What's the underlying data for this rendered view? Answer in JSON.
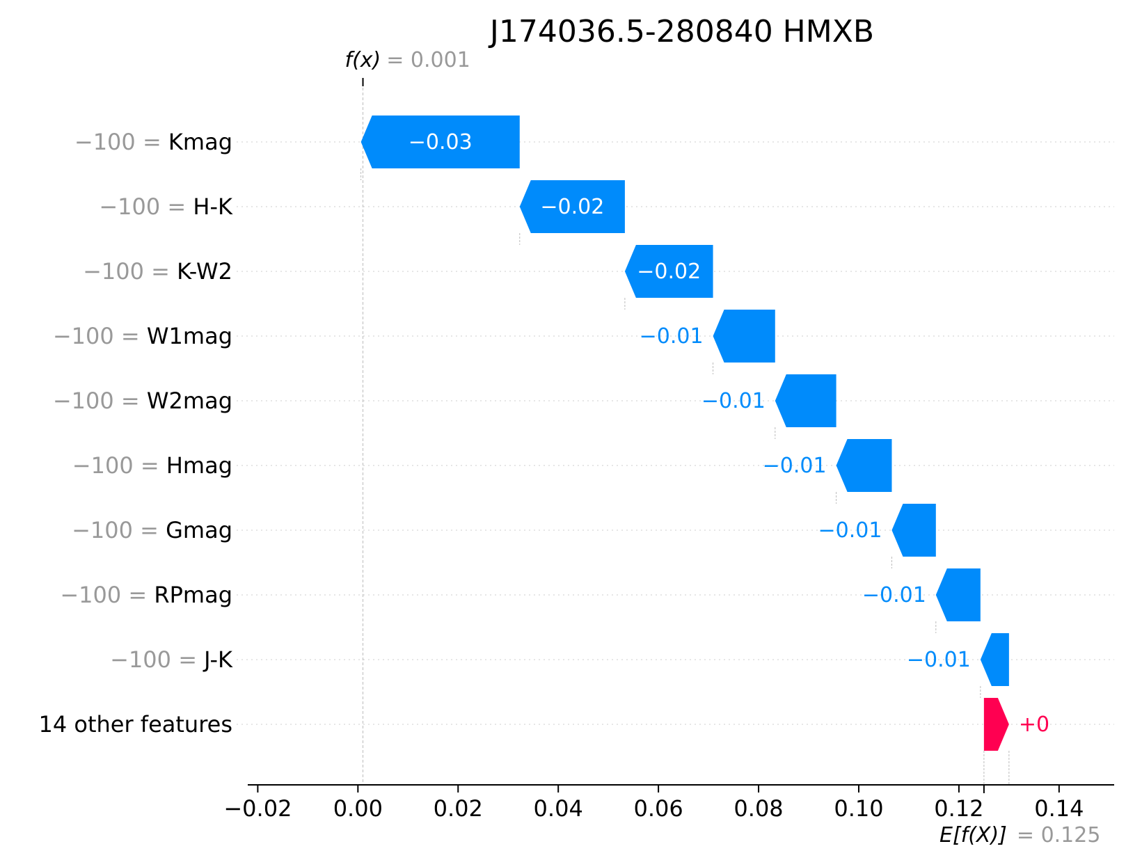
{
  "colors": {
    "negative": "#008bfb",
    "positive": "#ff0051",
    "muted": "#999999",
    "text": "#000000"
  },
  "chart_data": {
    "type": "bar",
    "subtype": "shap-waterfall",
    "title": "J174036.5-280840 HMXB",
    "fx": {
      "label": "f(x)",
      "value_text": "= 0.001",
      "value": 0.001
    },
    "base": {
      "label": "E[f(X)]",
      "value_text": "= 0.125",
      "value": 0.125
    },
    "xlim": [
      -0.022,
      0.151
    ],
    "xticks": [
      -0.02,
      0.0,
      0.02,
      0.04,
      0.06,
      0.08,
      0.1,
      0.12,
      0.14
    ],
    "xtick_labels": [
      "−0.02",
      "0.00",
      "0.02",
      "0.04",
      "0.06",
      "0.08",
      "0.10",
      "0.12",
      "0.14"
    ],
    "grid": "horizontal dotted per feature row",
    "features": [
      {
        "value_text": "−100 = ",
        "name": "Kmag",
        "shap": -0.0317,
        "label": "−0.03",
        "start": 0.0323,
        "end": 0.0006
      },
      {
        "value_text": "−100 = ",
        "name": "H-K",
        "shap": -0.021,
        "label": "−0.02",
        "start": 0.0533,
        "end": 0.0323
      },
      {
        "value_text": "−100 = ",
        "name": "K-W2",
        "shap": -0.0176,
        "label": "−0.02",
        "start": 0.0709,
        "end": 0.0533
      },
      {
        "value_text": "−100 = ",
        "name": "W1mag",
        "shap": -0.0124,
        "label": "−0.01",
        "start": 0.0833,
        "end": 0.0709
      },
      {
        "value_text": "−100 = ",
        "name": "W2mag",
        "shap": -0.0122,
        "label": "−0.01",
        "start": 0.0955,
        "end": 0.0833
      },
      {
        "value_text": "−100 = ",
        "name": "Hmag",
        "shap": -0.0111,
        "label": "−0.01",
        "start": 0.1066,
        "end": 0.0955
      },
      {
        "value_text": "−100 = ",
        "name": "Gmag",
        "shap": -0.0088,
        "label": "−0.01",
        "start": 0.1154,
        "end": 0.1066
      },
      {
        "value_text": "−100 = ",
        "name": "RPmag",
        "shap": -0.0089,
        "label": "−0.01",
        "start": 0.1243,
        "end": 0.1154
      },
      {
        "value_text": "−100 = ",
        "name": "J-K",
        "shap": -0.0057,
        "label": "−0.01",
        "start": 0.13,
        "end": 0.1243
      },
      {
        "value_text": "",
        "name": "14 other features",
        "shap": 0.005,
        "label": "+0",
        "start": 0.125,
        "end": 0.13
      }
    ]
  }
}
